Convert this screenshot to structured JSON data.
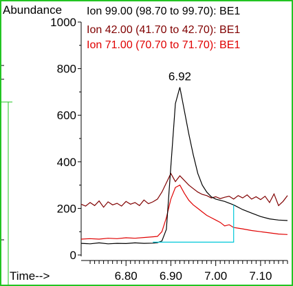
{
  "chart_data": {
    "type": "line",
    "ylabel": "Abundance",
    "xlabel": "Time-->",
    "xlim": [
      6.7,
      7.16
    ],
    "ylim": [
      0,
      1000
    ],
    "y_ticks": [
      "0",
      "200",
      "400",
      "600",
      "800",
      "1000"
    ],
    "x_ticks": [
      "6.80",
      "6.90",
      "7.00",
      "7.10"
    ],
    "x_tick_values": [
      6.8,
      6.9,
      7.0,
      7.1
    ],
    "y_tick_values": [
      0,
      200,
      400,
      600,
      800,
      1000
    ],
    "peak_label": {
      "text": "6.92",
      "x": 6.92,
      "y": 735
    },
    "grid": false,
    "legend_position": "top",
    "series": [
      {
        "name": "Ion  99.00 (98.70 to 99.70): BE1",
        "color": "#000000",
        "x": [
          6.7,
          6.72,
          6.74,
          6.76,
          6.78,
          6.8,
          6.82,
          6.84,
          6.86,
          6.87,
          6.88,
          6.89,
          6.9,
          6.91,
          6.92,
          6.93,
          6.94,
          6.95,
          6.96,
          6.97,
          6.98,
          6.99,
          7.0,
          7.02,
          7.04,
          7.06,
          7.08,
          7.1,
          7.12,
          7.14,
          7.16
        ],
        "y": [
          50,
          48,
          52,
          48,
          50,
          49,
          52,
          50,
          51,
          53,
          60,
          110,
          380,
          650,
          720,
          620,
          520,
          430,
          350,
          300,
          270,
          250,
          240,
          230,
          215,
          195,
          180,
          165,
          155,
          150,
          148
        ]
      },
      {
        "name": "Ion  42.00 (41.70 to 42.70): BE1",
        "color": "#800000",
        "x": [
          6.7,
          6.71,
          6.72,
          6.73,
          6.74,
          6.75,
          6.76,
          6.77,
          6.78,
          6.79,
          6.8,
          6.81,
          6.82,
          6.83,
          6.84,
          6.85,
          6.86,
          6.87,
          6.88,
          6.89,
          6.9,
          6.91,
          6.92,
          6.93,
          6.94,
          6.95,
          6.96,
          6.97,
          6.98,
          6.99,
          7.0,
          7.01,
          7.02,
          7.03,
          7.04,
          7.05,
          7.06,
          7.07,
          7.08,
          7.09,
          7.1,
          7.11,
          7.12,
          7.13,
          7.14,
          7.15,
          7.16
        ],
        "y": [
          218,
          210,
          225,
          212,
          232,
          205,
          228,
          215,
          222,
          210,
          230,
          218,
          225,
          212,
          236,
          220,
          228,
          240,
          270,
          310,
          350,
          315,
          340,
          320,
          300,
          285,
          270,
          260,
          255,
          245,
          250,
          242,
          248,
          252,
          240,
          255,
          245,
          258,
          240,
          250,
          238,
          252,
          225,
          262,
          212,
          230,
          255
        ]
      },
      {
        "name": "Ion  71.00 (70.70 to 71.70): BE1",
        "color": "#e00000",
        "x": [
          6.7,
          6.72,
          6.74,
          6.76,
          6.78,
          6.8,
          6.82,
          6.84,
          6.86,
          6.87,
          6.88,
          6.89,
          6.9,
          6.91,
          6.92,
          6.93,
          6.94,
          6.95,
          6.96,
          6.97,
          6.98,
          6.99,
          7.0,
          7.01,
          7.02,
          7.03,
          7.04,
          7.05,
          7.06,
          7.08,
          7.1,
          7.12,
          7.14,
          7.16
        ],
        "y": [
          68,
          70,
          68,
          72,
          70,
          74,
          72,
          75,
          78,
          80,
          100,
          160,
          240,
          290,
          300,
          265,
          235,
          215,
          200,
          185,
          170,
          160,
          150,
          140,
          125,
          130,
          118,
          115,
          112,
          105,
          100,
          95,
          90,
          88
        ]
      }
    ],
    "baseline": {
      "color": "#00c8d8",
      "points": [
        [
          6.86,
          55
        ],
        [
          7.04,
          55
        ],
        [
          7.04,
          215
        ]
      ]
    }
  }
}
